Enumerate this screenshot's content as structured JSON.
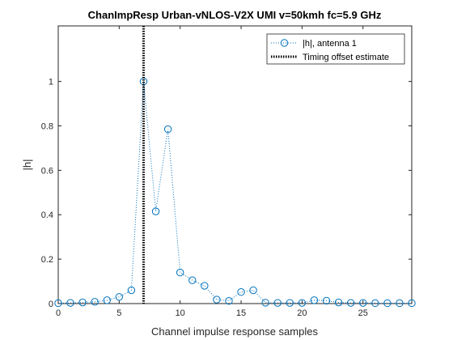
{
  "chart_data": {
    "type": "line",
    "title": "ChanImpResp Urban-vNLOS-V2X UMI v=50kmh fc=5.9 GHz",
    "xlabel": "Channel impulse response samples",
    "ylabel": "|h|",
    "xlim": [
      0,
      29
    ],
    "ylim": [
      0,
      1.25
    ],
    "xticks": [
      0,
      5,
      10,
      15,
      20,
      25
    ],
    "yticks": [
      0,
      0.2,
      0.4,
      0.6,
      0.8,
      1
    ],
    "grid": false,
    "legend_position": "top-right",
    "series": [
      {
        "name": "|h|, antenna 1",
        "style": "dotted line with circle markers",
        "color": "#0072BD",
        "x": [
          0,
          1,
          2,
          3,
          4,
          5,
          6,
          7,
          8,
          9,
          10,
          11,
          12,
          13,
          14,
          15,
          16,
          17,
          18,
          19,
          20,
          21,
          22,
          23,
          24,
          25,
          26,
          27,
          28,
          29
        ],
        "y": [
          0.002,
          0.003,
          0.005,
          0.008,
          0.015,
          0.03,
          0.06,
          1.0,
          0.415,
          0.785,
          0.14,
          0.105,
          0.08,
          0.018,
          0.012,
          0.052,
          0.06,
          0.004,
          0.003,
          0.003,
          0.003,
          0.015,
          0.013,
          0.005,
          0.003,
          0.003,
          0.002,
          0.002,
          0.002,
          0.002
        ]
      },
      {
        "name": "Timing offset estimate",
        "style": "vertical dotted black line",
        "color": "#000000",
        "x_value": 7
      }
    ]
  }
}
